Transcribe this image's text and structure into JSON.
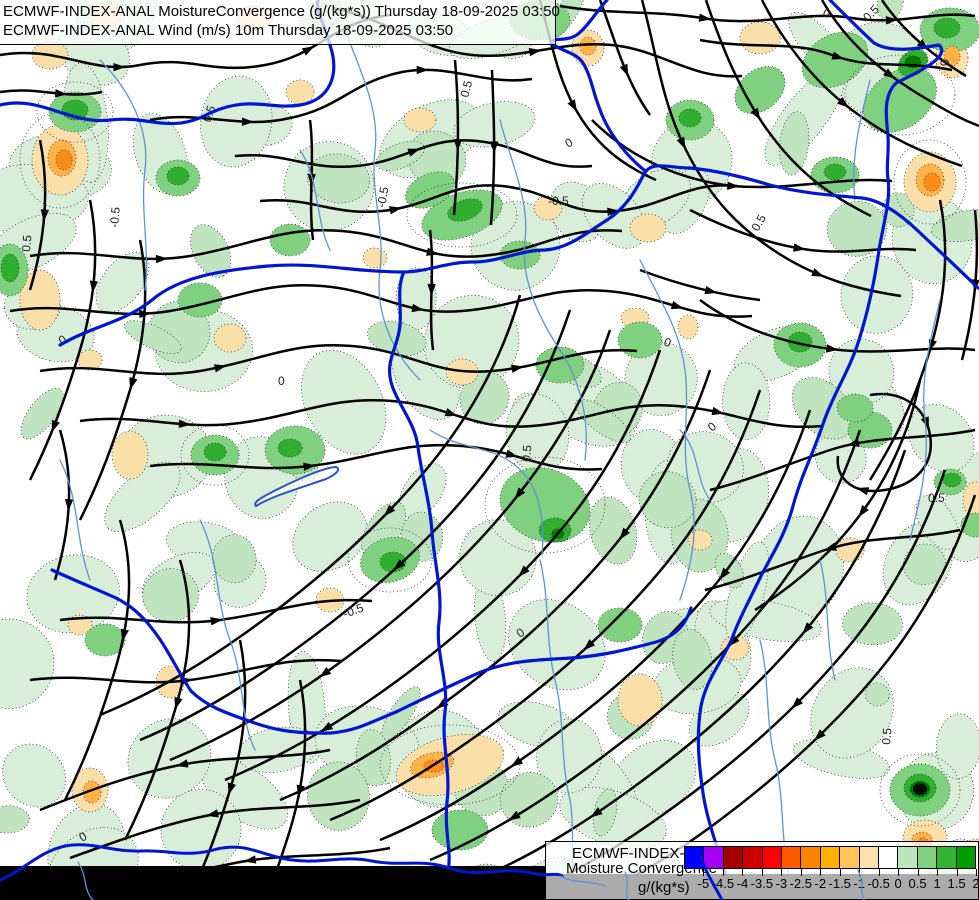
{
  "header": {
    "line1": "ECMWF-INDEX-ANAL MoistureConvergence (g/(kg*s)) Thursday 18-09-2025 03:50",
    "line2": "ECMWF-INDEX-ANAL Wind (m/s) 10m Thursday 18-09-2025 03:50"
  },
  "legend": {
    "title": "ECMWF-INDEX-ANAL",
    "subtitle": "Moisture Convergence",
    "units": "g/(kg*s)",
    "tick_labels": [
      "-5",
      "-4.5",
      "-4",
      "-3.5",
      "-3",
      "-2.5",
      "-2",
      "-1.5",
      "-1",
      "-0.5",
      "0",
      "0.5",
      "1",
      "1.5",
      "2"
    ],
    "colorbar_colors": [
      "#0000ff",
      "#a500f5",
      "#a50000",
      "#d00000",
      "#ff0000",
      "#ff5a00",
      "#ff8400",
      "#ffb000",
      "#ffc55a",
      "#ffe0ac",
      "#ffffff",
      "#bce6bc",
      "#7fd07f",
      "#33b433",
      "#009e00"
    ]
  },
  "map": {
    "contour_values": {
      "zero": "0",
      "pos": "0.5",
      "neg": "-0.5"
    },
    "palette": {
      "green_light": "#d8eed8",
      "green_light2": "#bfe4bf",
      "green_mid": "#7fd07f",
      "green_deep": "#2fae2f",
      "green_darkest": "#007c00",
      "black_spot": "#060d06",
      "tan": "#fbdfa9",
      "orange": "#ffb347",
      "orange_deep": "#ff8b1a",
      "river_thick": "#0016d2",
      "river_thin": "#5e93d2",
      "lake_outline": "#2b52c8",
      "stream": "#000000"
    }
  }
}
